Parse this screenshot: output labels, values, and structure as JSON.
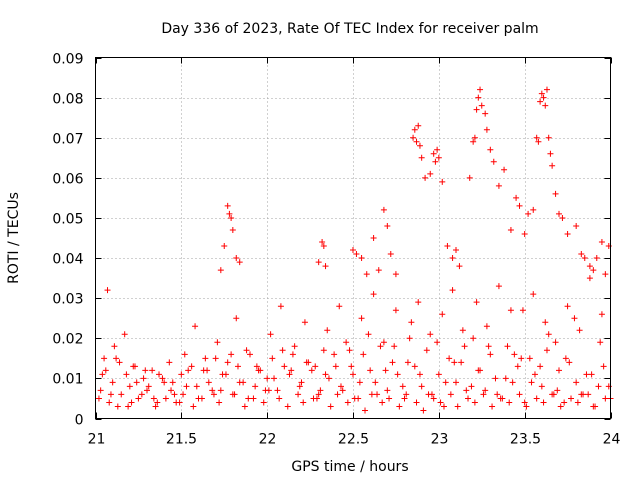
{
  "chart_data": {
    "type": "scatter",
    "title": "Day 336 of 2023, Rate Of TEC Index for receiver palm",
    "xlabel": "GPS time / hours",
    "ylabel": "ROTI / TECUs",
    "xlim": [
      21,
      24
    ],
    "ylim": [
      0,
      0.09
    ],
    "x_ticks": [
      21,
      21.5,
      22,
      22.5,
      23,
      23.5,
      24
    ],
    "x_tick_labels": [
      "21",
      "21.5",
      "22",
      "22.5",
      "23",
      "23.5",
      "24"
    ],
    "y_ticks": [
      0,
      0.01,
      0.02,
      0.03,
      0.04,
      0.05,
      0.06,
      0.07,
      0.08,
      0.09
    ],
    "y_tick_labels": [
      "0",
      "0.01",
      "0.02",
      "0.03",
      "0.04",
      "0.05",
      "0.06",
      "0.07",
      "0.08",
      "0.09"
    ],
    "grid": true,
    "marker": "+",
    "color": "#ff0000",
    "series": [
      {
        "name": "ROTI",
        "x": [
          21.03,
          21.06,
          21.08,
          21.1,
          21.12,
          21.15,
          21.18,
          21.2,
          21.22,
          21.25,
          21.28,
          21.3,
          21.33,
          21.36,
          21.4,
          21.43,
          21.46,
          21.5,
          21.53,
          21.56,
          21.6,
          21.63,
          21.66,
          21.7,
          21.73,
          21.76,
          21.8,
          21.83,
          21.86,
          21.9,
          21.93,
          21.96,
          22.0,
          22.03,
          22.06,
          22.1,
          22.13,
          22.16,
          22.2,
          22.23,
          22.26,
          22.3,
          22.33,
          22.36,
          22.4,
          22.43,
          22.46,
          22.5,
          22.53,
          22.56,
          22.6,
          22.63,
          22.66,
          22.7,
          22.73,
          22.76,
          22.8,
          22.83,
          22.86,
          22.9,
          22.93,
          22.96,
          23.0,
          23.03,
          23.06,
          23.1,
          23.13,
          23.16,
          23.2,
          23.23,
          23.26,
          23.3,
          23.33,
          23.36,
          23.4,
          23.43,
          23.46,
          23.5,
          23.53,
          23.56,
          23.6,
          23.63,
          23.66,
          23.7,
          23.73,
          23.76,
          23.8,
          23.83,
          23.86,
          23.9,
          23.93,
          23.96,
          24.0,
          21.04,
          21.09,
          21.14,
          21.19,
          21.24,
          21.29,
          21.34,
          21.39,
          21.44,
          21.49,
          21.54,
          21.59,
          21.64,
          21.69,
          21.74,
          21.79,
          21.84,
          21.89,
          21.94,
          21.99,
          22.04,
          22.09,
          22.14,
          22.19,
          22.24,
          22.29,
          22.34,
          22.39,
          22.44,
          22.49,
          22.54,
          22.59,
          22.64,
          22.69,
          22.74,
          22.79,
          22.84,
          22.89,
          22.94,
          22.99,
          23.04,
          23.09,
          23.14,
          23.19,
          23.24,
          23.29,
          23.34,
          23.39,
          23.44,
          23.49,
          23.54,
          23.59,
          23.64,
          23.69,
          23.74,
          23.79,
          23.84,
          23.89,
          23.94,
          23.99,
          21.05,
          21.11,
          21.17,
          21.23,
          21.31,
          21.37,
          21.45,
          21.52,
          21.58,
          21.65,
          21.71,
          21.77,
          21.82,
          21.88,
          21.95,
          22.02,
          22.08,
          22.15,
          22.22,
          22.28,
          22.35,
          22.42,
          22.48,
          22.55,
          22.62,
          22.68,
          22.75,
          22.82,
          22.88,
          22.95,
          23.02,
          23.08,
          23.15,
          23.22,
          23.28,
          23.35,
          23.42,
          23.48,
          23.55,
          23.62,
          23.68,
          23.75,
          23.82,
          23.88,
          23.95,
          21.07,
          21.77,
          21.78,
          21.79,
          21.8,
          21.82,
          21.84,
          21.75,
          21.73,
          22.3,
          22.32,
          22.33,
          22.34,
          22.5,
          22.52,
          22.55,
          22.58,
          22.62,
          22.65,
          22.68,
          22.7,
          22.72,
          22.75,
          22.85,
          22.86,
          22.87,
          22.88,
          22.89,
          22.9,
          22.92,
          22.95,
          22.97,
          22.98,
          22.99,
          23.0,
          23.02,
          23.05,
          23.08,
          23.1,
          23.12,
          23.18,
          23.2,
          23.21,
          23.22,
          23.23,
          23.24,
          23.25,
          23.27,
          23.28,
          23.3,
          23.32,
          23.35,
          23.38,
          23.42,
          23.45,
          23.47,
          23.5,
          23.52,
          23.55,
          23.57,
          23.58,
          23.59,
          23.6,
          23.61,
          23.62,
          23.63,
          23.64,
          23.65,
          23.66,
          23.68,
          23.7,
          23.72,
          23.75,
          23.8,
          23.83,
          23.85,
          23.88,
          23.9,
          23.92,
          23.95,
          23.97,
          23.99,
          21.02,
          21.13,
          21.21,
          21.27,
          21.35,
          21.41,
          21.47,
          21.51,
          21.57,
          21.62,
          21.68,
          21.72,
          21.81,
          21.87,
          21.92,
          21.98,
          22.01,
          22.07,
          22.12,
          22.18,
          22.21,
          22.27,
          22.31,
          22.37,
          22.41,
          22.47,
          22.51,
          22.57,
          22.61,
          22.67,
          22.71,
          22.77,
          22.81,
          22.87,
          22.91,
          22.97,
          23.01,
          23.07,
          23.11,
          23.17,
          23.21,
          23.27,
          23.31,
          23.37,
          23.41,
          23.47,
          23.51,
          23.57,
          23.61,
          23.67,
          23.71,
          23.77,
          23.81,
          23.87,
          23.91,
          23.97
        ],
        "y": [
          0.007,
          0.012,
          0.004,
          0.009,
          0.015,
          0.006,
          0.011,
          0.008,
          0.013,
          0.005,
          0.01,
          0.007,
          0.012,
          0.004,
          0.009,
          0.014,
          0.006,
          0.011,
          0.008,
          0.013,
          0.005,
          0.012,
          0.009,
          0.015,
          0.007,
          0.011,
          0.006,
          0.013,
          0.009,
          0.016,
          0.008,
          0.012,
          0.01,
          0.015,
          0.007,
          0.013,
          0.011,
          0.018,
          0.009,
          0.014,
          0.012,
          0.006,
          0.017,
          0.01,
          0.013,
          0.008,
          0.019,
          0.011,
          0.005,
          0.016,
          0.012,
          0.009,
          0.018,
          0.007,
          0.014,
          0.011,
          0.005,
          0.02,
          0.013,
          0.008,
          0.017,
          0.006,
          0.011,
          0.003,
          0.015,
          0.009,
          0.014,
          0.007,
          0.02,
          0.012,
          0.006,
          0.016,
          0.01,
          0.005,
          0.018,
          0.009,
          0.013,
          0.004,
          0.015,
          0.011,
          0.008,
          0.017,
          0.006,
          0.012,
          0.004,
          0.014,
          0.009,
          0.006,
          0.011,
          0.003,
          0.008,
          0.013,
          0.005,
          0.011,
          0.006,
          0.014,
          0.003,
          0.009,
          0.012,
          0.005,
          0.01,
          0.007,
          0.004,
          0.012,
          0.008,
          0.015,
          0.006,
          0.011,
          0.016,
          0.009,
          0.005,
          0.013,
          0.007,
          0.01,
          0.017,
          0.012,
          0.008,
          0.014,
          0.005,
          0.011,
          0.016,
          0.007,
          0.013,
          0.009,
          0.021,
          0.006,
          0.012,
          0.018,
          0.008,
          0.024,
          0.011,
          0.006,
          0.019,
          0.009,
          0.014,
          0.022,
          0.008,
          0.012,
          0.018,
          0.006,
          0.01,
          0.016,
          0.027,
          0.009,
          0.013,
          0.021,
          0.007,
          0.015,
          0.025,
          0.006,
          0.011,
          0.019,
          0.008,
          0.015,
          0.018,
          0.021,
          0.013,
          0.008,
          0.011,
          0.009,
          0.016,
          0.023,
          0.012,
          0.019,
          0.014,
          0.025,
          0.017,
          0.012,
          0.021,
          0.028,
          0.016,
          0.024,
          0.013,
          0.022,
          0.028,
          0.017,
          0.025,
          0.031,
          0.019,
          0.027,
          0.014,
          0.029,
          0.021,
          0.026,
          0.032,
          0.018,
          0.029,
          0.023,
          0.033,
          0.027,
          0.015,
          0.031,
          0.024,
          0.019,
          0.028,
          0.022,
          0.035,
          0.026,
          0.032,
          0.053,
          0.051,
          0.05,
          0.047,
          0.04,
          0.039,
          0.043,
          0.037,
          0.039,
          0.044,
          0.043,
          0.038,
          0.042,
          0.041,
          0.04,
          0.036,
          0.045,
          0.037,
          0.052,
          0.048,
          0.041,
          0.036,
          0.07,
          0.072,
          0.069,
          0.073,
          0.068,
          0.065,
          0.06,
          0.061,
          0.066,
          0.064,
          0.067,
          0.065,
          0.059,
          0.043,
          0.04,
          0.042,
          0.038,
          0.06,
          0.069,
          0.07,
          0.077,
          0.08,
          0.082,
          0.078,
          0.076,
          0.072,
          0.067,
          0.064,
          0.058,
          0.062,
          0.047,
          0.055,
          0.053,
          0.046,
          0.051,
          0.052,
          0.07,
          0.069,
          0.079,
          0.081,
          0.08,
          0.078,
          0.082,
          0.07,
          0.066,
          0.063,
          0.056,
          0.051,
          0.05,
          0.046,
          0.048,
          0.041,
          0.04,
          0.038,
          0.037,
          0.04,
          0.044,
          0.036,
          0.043,
          0.005,
          0.003,
          0.004,
          0.006,
          0.003,
          0.005,
          0.004,
          0.006,
          0.003,
          0.005,
          0.007,
          0.004,
          0.006,
          0.003,
          0.005,
          0.004,
          0.007,
          0.005,
          0.003,
          0.006,
          0.004,
          0.005,
          0.007,
          0.003,
          0.006,
          0.004,
          0.005,
          0.002,
          0.006,
          0.004,
          0.005,
          0.003,
          0.006,
          0.004,
          0.002,
          0.005,
          0.004,
          0.006,
          0.003,
          0.005,
          0.004,
          0.007,
          0.003,
          0.005,
          0.004,
          0.006,
          0.003,
          0.005,
          0.004,
          0.006,
          0.003,
          0.005,
          0.004,
          0.006,
          0.003,
          0.005
        ]
      }
    ]
  }
}
